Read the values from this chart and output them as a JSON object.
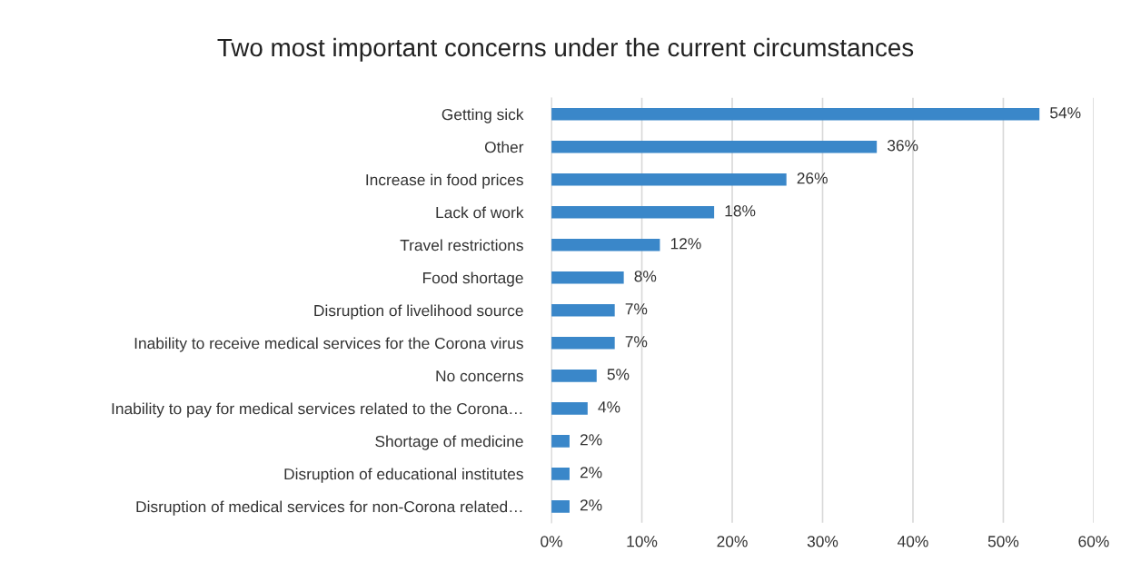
{
  "chart_data": {
    "type": "bar",
    "orientation": "horizontal",
    "title": "Two most important concerns under the current circumstances",
    "categories": [
      "Getting sick",
      "Other",
      "Increase in food prices",
      "Lack of work",
      "Travel restrictions",
      "Food shortage",
      "Disruption of livelihood source",
      "Inability to receive medical services for the Corona virus",
      "No concerns",
      "Inability to pay for medical services related to the Corona…",
      "Shortage of medicine",
      "Disruption of educational institutes",
      "Disruption of medical services for non-Corona related…"
    ],
    "values": [
      54,
      36,
      26,
      18,
      12,
      8,
      7,
      7,
      5,
      4,
      2,
      2,
      2
    ],
    "value_labels": [
      "54%",
      "36%",
      "26%",
      "18%",
      "12%",
      "8%",
      "7%",
      "7%",
      "5%",
      "4%",
      "2%",
      "2%",
      "2%"
    ],
    "color": "#3a87c9",
    "xlim": [
      0,
      60
    ],
    "xticks": [
      {
        "value": 0,
        "label": "0%"
      },
      {
        "value": 10,
        "label": "10%"
      },
      {
        "value": 20,
        "label": "20%"
      },
      {
        "value": 30,
        "label": "30%"
      },
      {
        "value": 40,
        "label": "40%"
      },
      {
        "value": 50,
        "label": "50%"
      },
      {
        "value": 60,
        "label": "60%"
      }
    ],
    "grid": "x"
  }
}
